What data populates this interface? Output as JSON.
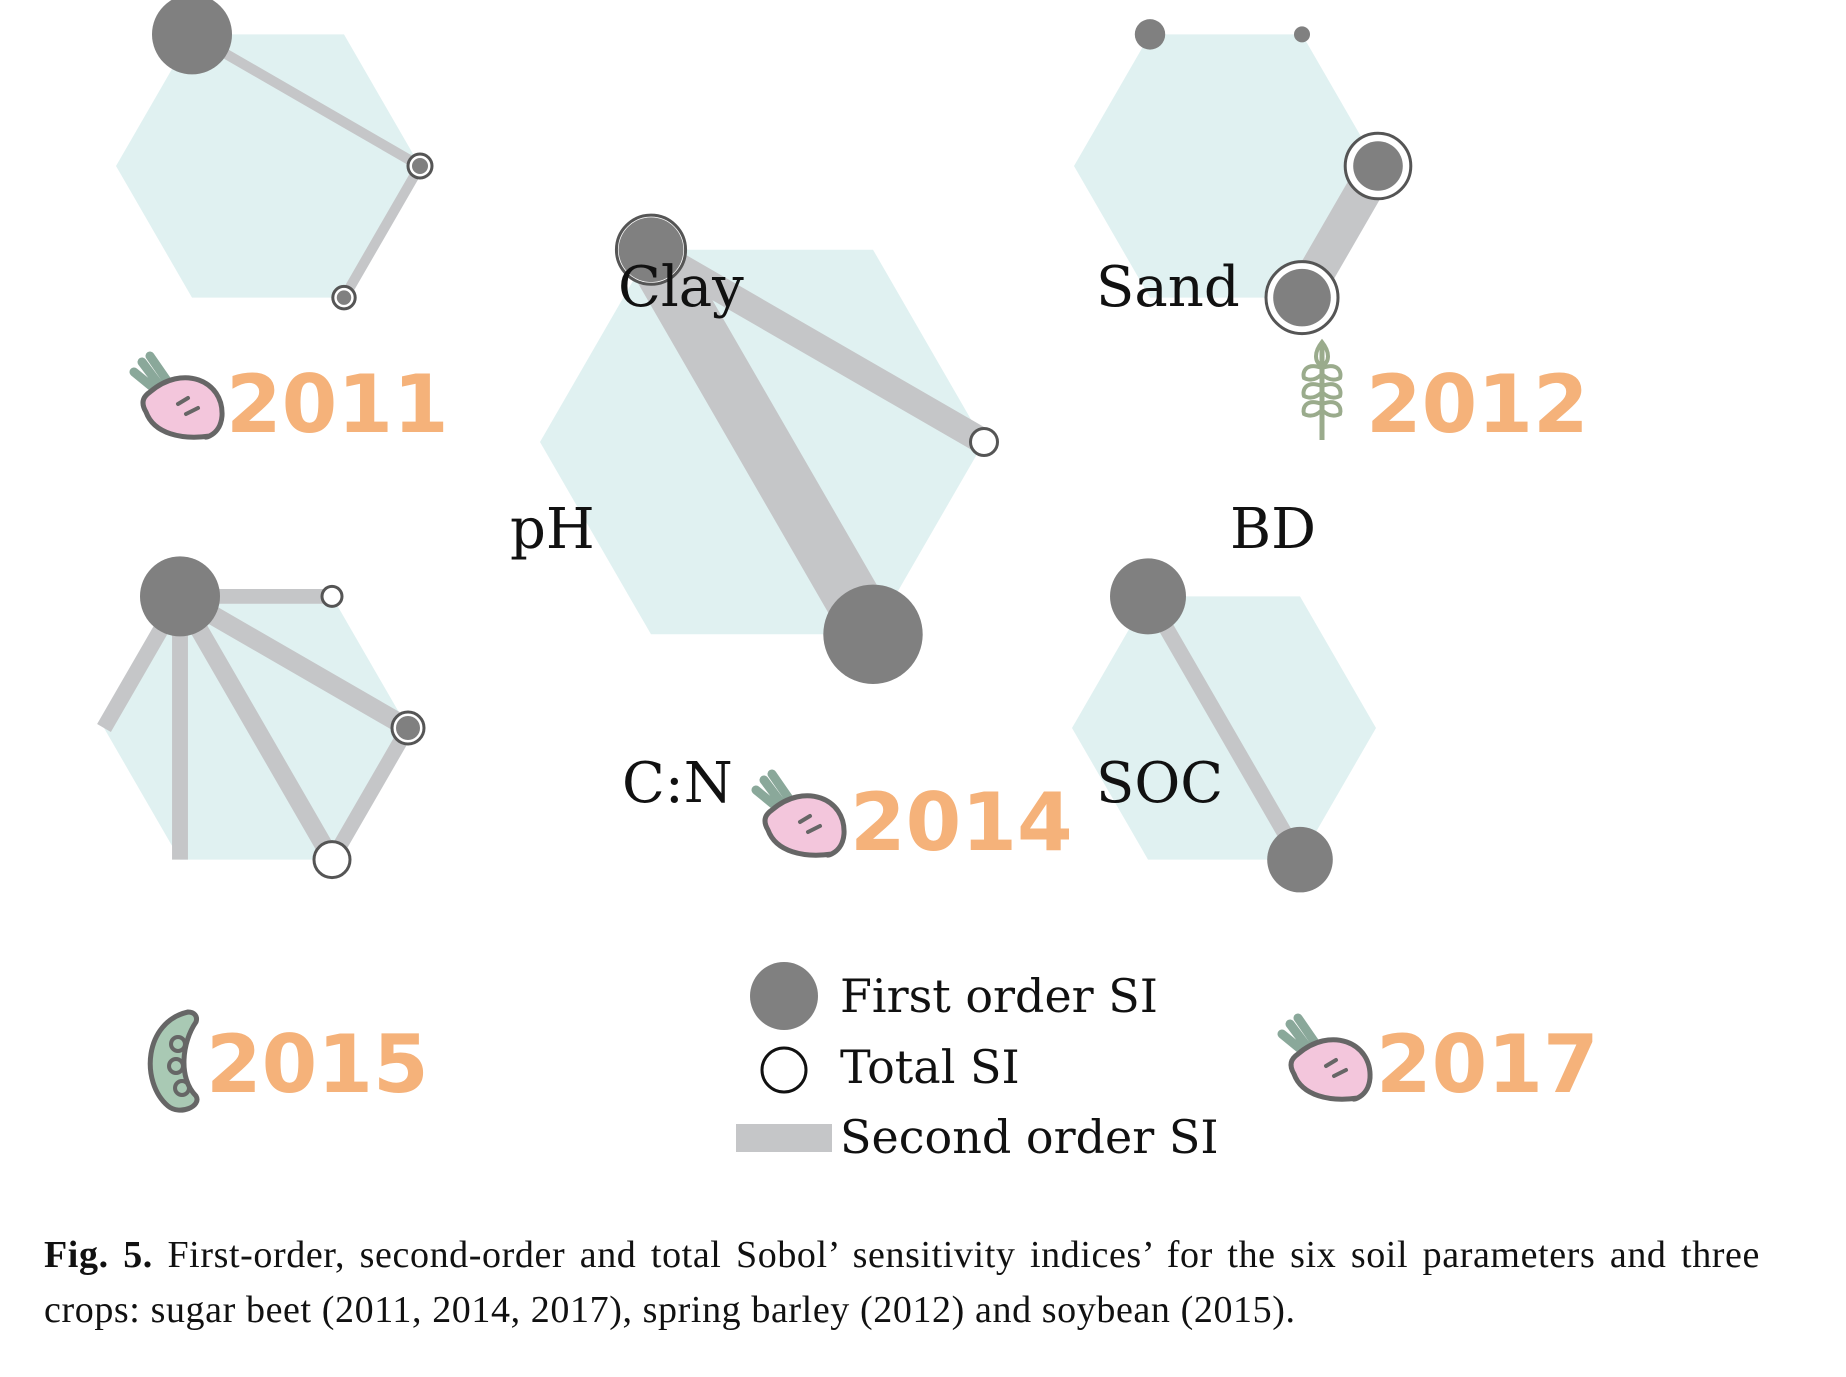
{
  "parameters": [
    "Clay",
    "Sand",
    "BD",
    "SOC",
    "C:N",
    "pH"
  ],
  "colors": {
    "hexagon": "#e0f1f1",
    "first_order": "#808080",
    "second_order": "#c5c6c8",
    "total_stroke": "#555555",
    "year": "#f5b27a"
  },
  "panels": [
    {
      "id": "p2011",
      "year": "2011",
      "crop": "sugar beet",
      "icon": "sugar-beet-icon",
      "first": {
        "Clay": 1.0,
        "BD": 0.2,
        "SOC": 0.18
      },
      "total": {
        "BD": 0.3,
        "SOC": 0.28
      },
      "second": [
        {
          "a": "Clay",
          "b": "BD",
          "w": 0.26
        },
        {
          "a": "BD",
          "b": "SOC",
          "w": 0.26
        }
      ]
    },
    {
      "id": "p2012",
      "year": "2012",
      "crop": "spring barley",
      "icon": "wheat-icon",
      "first": {
        "Clay": 0.38,
        "Sand": 0.2,
        "BD": 0.62,
        "SOC": 0.72
      },
      "total": {
        "BD": 0.82,
        "SOC": 0.9
      },
      "second": [
        {
          "a": "BD",
          "b": "SOC",
          "w": 0.9
        }
      ]
    },
    {
      "id": "p2014",
      "year": "2014",
      "crop": "sugar beet",
      "icon": "sugar-beet-icon",
      "first": {
        "Clay": 0.6,
        "SOC": 0.92
      },
      "total": {
        "Clay": 0.64,
        "BD": 0.25
      },
      "second": [
        {
          "a": "Clay",
          "b": "BD",
          "w": 0.4
        },
        {
          "a": "Clay",
          "b": "SOC",
          "w": 1.0
        }
      ]
    },
    {
      "id": "p2015",
      "year": "2015",
      "crop": "soybean",
      "icon": "soybean-icon",
      "first": {
        "Clay": 1.0,
        "BD": 0.3
      },
      "total": {
        "Sand": 0.25,
        "BD": 0.4,
        "SOC": 0.45
      },
      "second": [
        {
          "a": "Clay",
          "b": "Sand",
          "w": 0.4
        },
        {
          "a": "Clay",
          "b": "BD",
          "w": 0.6
        },
        {
          "a": "Clay",
          "b": "SOC",
          "w": 0.55
        },
        {
          "a": "Clay",
          "b": "C:N",
          "w": 0.45
        },
        {
          "a": "Clay",
          "b": "pH",
          "w": 0.45
        },
        {
          "a": "BD",
          "b": "SOC",
          "w": 0.4
        }
      ]
    },
    {
      "id": "p2017",
      "year": "2017",
      "crop": "sugar beet",
      "icon": "sugar-beet-icon",
      "first": {
        "Clay": 0.95,
        "SOC": 0.82
      },
      "total": {},
      "second": [
        {
          "a": "Clay",
          "b": "SOC",
          "w": 0.4
        }
      ]
    }
  ],
  "legend": {
    "first_order": "First order SI",
    "total": "Total SI",
    "second_order": "Second order SI"
  },
  "caption": {
    "label": "Fig. 5.",
    "text": "First-order, second-order and total Sobol’ sensitivity indices’ for the six soil parameters and three crops: sugar beet (2011, 2014, 2017), spring barley (2012) and soybean (2015)."
  }
}
